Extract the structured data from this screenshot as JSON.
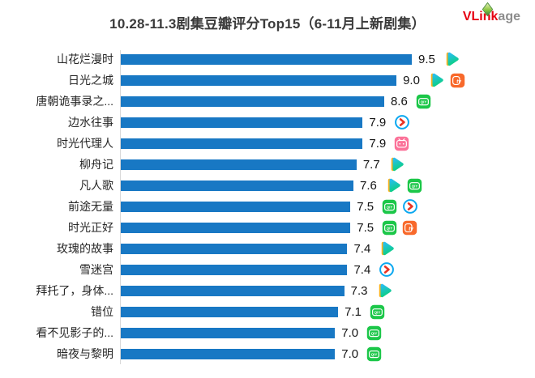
{
  "header": {
    "title": "10.28-11.3剧集豆瓣评分Top15（6-11月上新剧集）",
    "logo_red_text": "VLink",
    "logo_gray_text": "age"
  },
  "colors": {
    "bar": "#1878c4",
    "axis": "#d9d9d9",
    "title_text": "#3a3a3a",
    "logo_red": "#e60012",
    "logo_gray": "#8d8d8d",
    "platform": {
      "tencent_blue": "#2cbbff",
      "tencent_green": "#0ad07c",
      "tencent_orange": "#ffb21e",
      "iqiyi_green": "#1cc749",
      "youku_ring_blue": "#0ba8f0",
      "youku_arrow_red": "#e83323",
      "mango_orange": "#f8692b",
      "bilibili_pink": "#fb7299"
    }
  },
  "chart_data": {
    "type": "bar",
    "orientation": "horizontal",
    "title": "10.28-11.3剧集豆瓣评分Top15（6-11月上新剧集）",
    "xlabel": "",
    "ylabel": "",
    "xlim": [
      0,
      9.5
    ],
    "grid": false,
    "legend": false,
    "value_label_format": "one_decimal",
    "categories": [
      "山花烂漫时",
      "日光之城",
      "唐朝诡事录之...",
      "边水往事",
      "时光代理人",
      "柳舟记",
      "凡人歌",
      "前途无量",
      "时光正好",
      "玫瑰的故事",
      "雪迷宫",
      "拜托了，身体...",
      "错位",
      "看不见影子的...",
      "暗夜与黎明"
    ],
    "values": [
      9.5,
      9.0,
      8.6,
      7.9,
      7.9,
      7.7,
      7.6,
      7.5,
      7.5,
      7.4,
      7.4,
      7.3,
      7.1,
      7.0,
      7.0
    ],
    "platforms": [
      [
        "tencent-video-icon"
      ],
      [
        "tencent-video-icon",
        "mango-tv-icon"
      ],
      [
        "iqiyi-icon"
      ],
      [
        "youku-icon"
      ],
      [
        "bilibili-icon"
      ],
      [
        "tencent-video-icon"
      ],
      [
        "tencent-video-icon",
        "iqiyi-icon"
      ],
      [
        "iqiyi-icon",
        "youku-icon"
      ],
      [
        "iqiyi-icon",
        "mango-tv-icon"
      ],
      [
        "tencent-video-icon"
      ],
      [
        "youku-icon"
      ],
      [
        "tencent-video-icon"
      ],
      [
        "iqiyi-icon"
      ],
      [
        "iqiyi-icon"
      ],
      [
        "iqiyi-icon"
      ]
    ]
  }
}
